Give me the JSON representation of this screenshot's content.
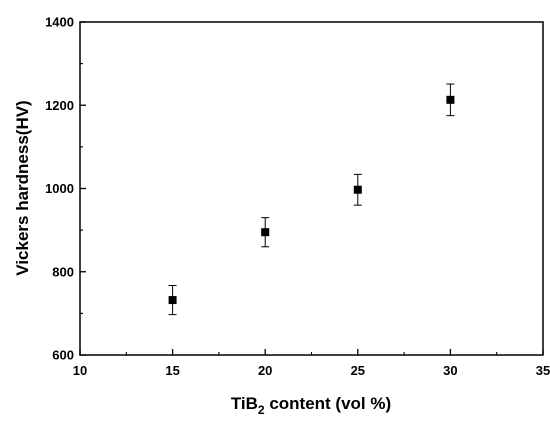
{
  "chart_data": {
    "type": "scatter",
    "title": "",
    "xlabel": {
      "prefix": "TiB",
      "subscript": "2",
      "suffix": " content  (vol %)"
    },
    "ylabel": "Vickers hardness(HV)",
    "xlim": [
      10,
      35
    ],
    "ylim": [
      600,
      1400
    ],
    "x_ticks": [
      10,
      15,
      20,
      25,
      30,
      35
    ],
    "y_ticks": [
      600,
      800,
      1000,
      1200,
      1400
    ],
    "grid": false,
    "legend": false,
    "marker": "square",
    "series": [
      {
        "x": [
          15,
          20,
          25,
          30
        ],
        "y": [
          732,
          895,
          997,
          1213
        ],
        "error": [
          35,
          35,
          37,
          38
        ]
      }
    ],
    "colors": {
      "marker": "#000000",
      "axis": "#000000",
      "background": "#ffffff"
    }
  }
}
